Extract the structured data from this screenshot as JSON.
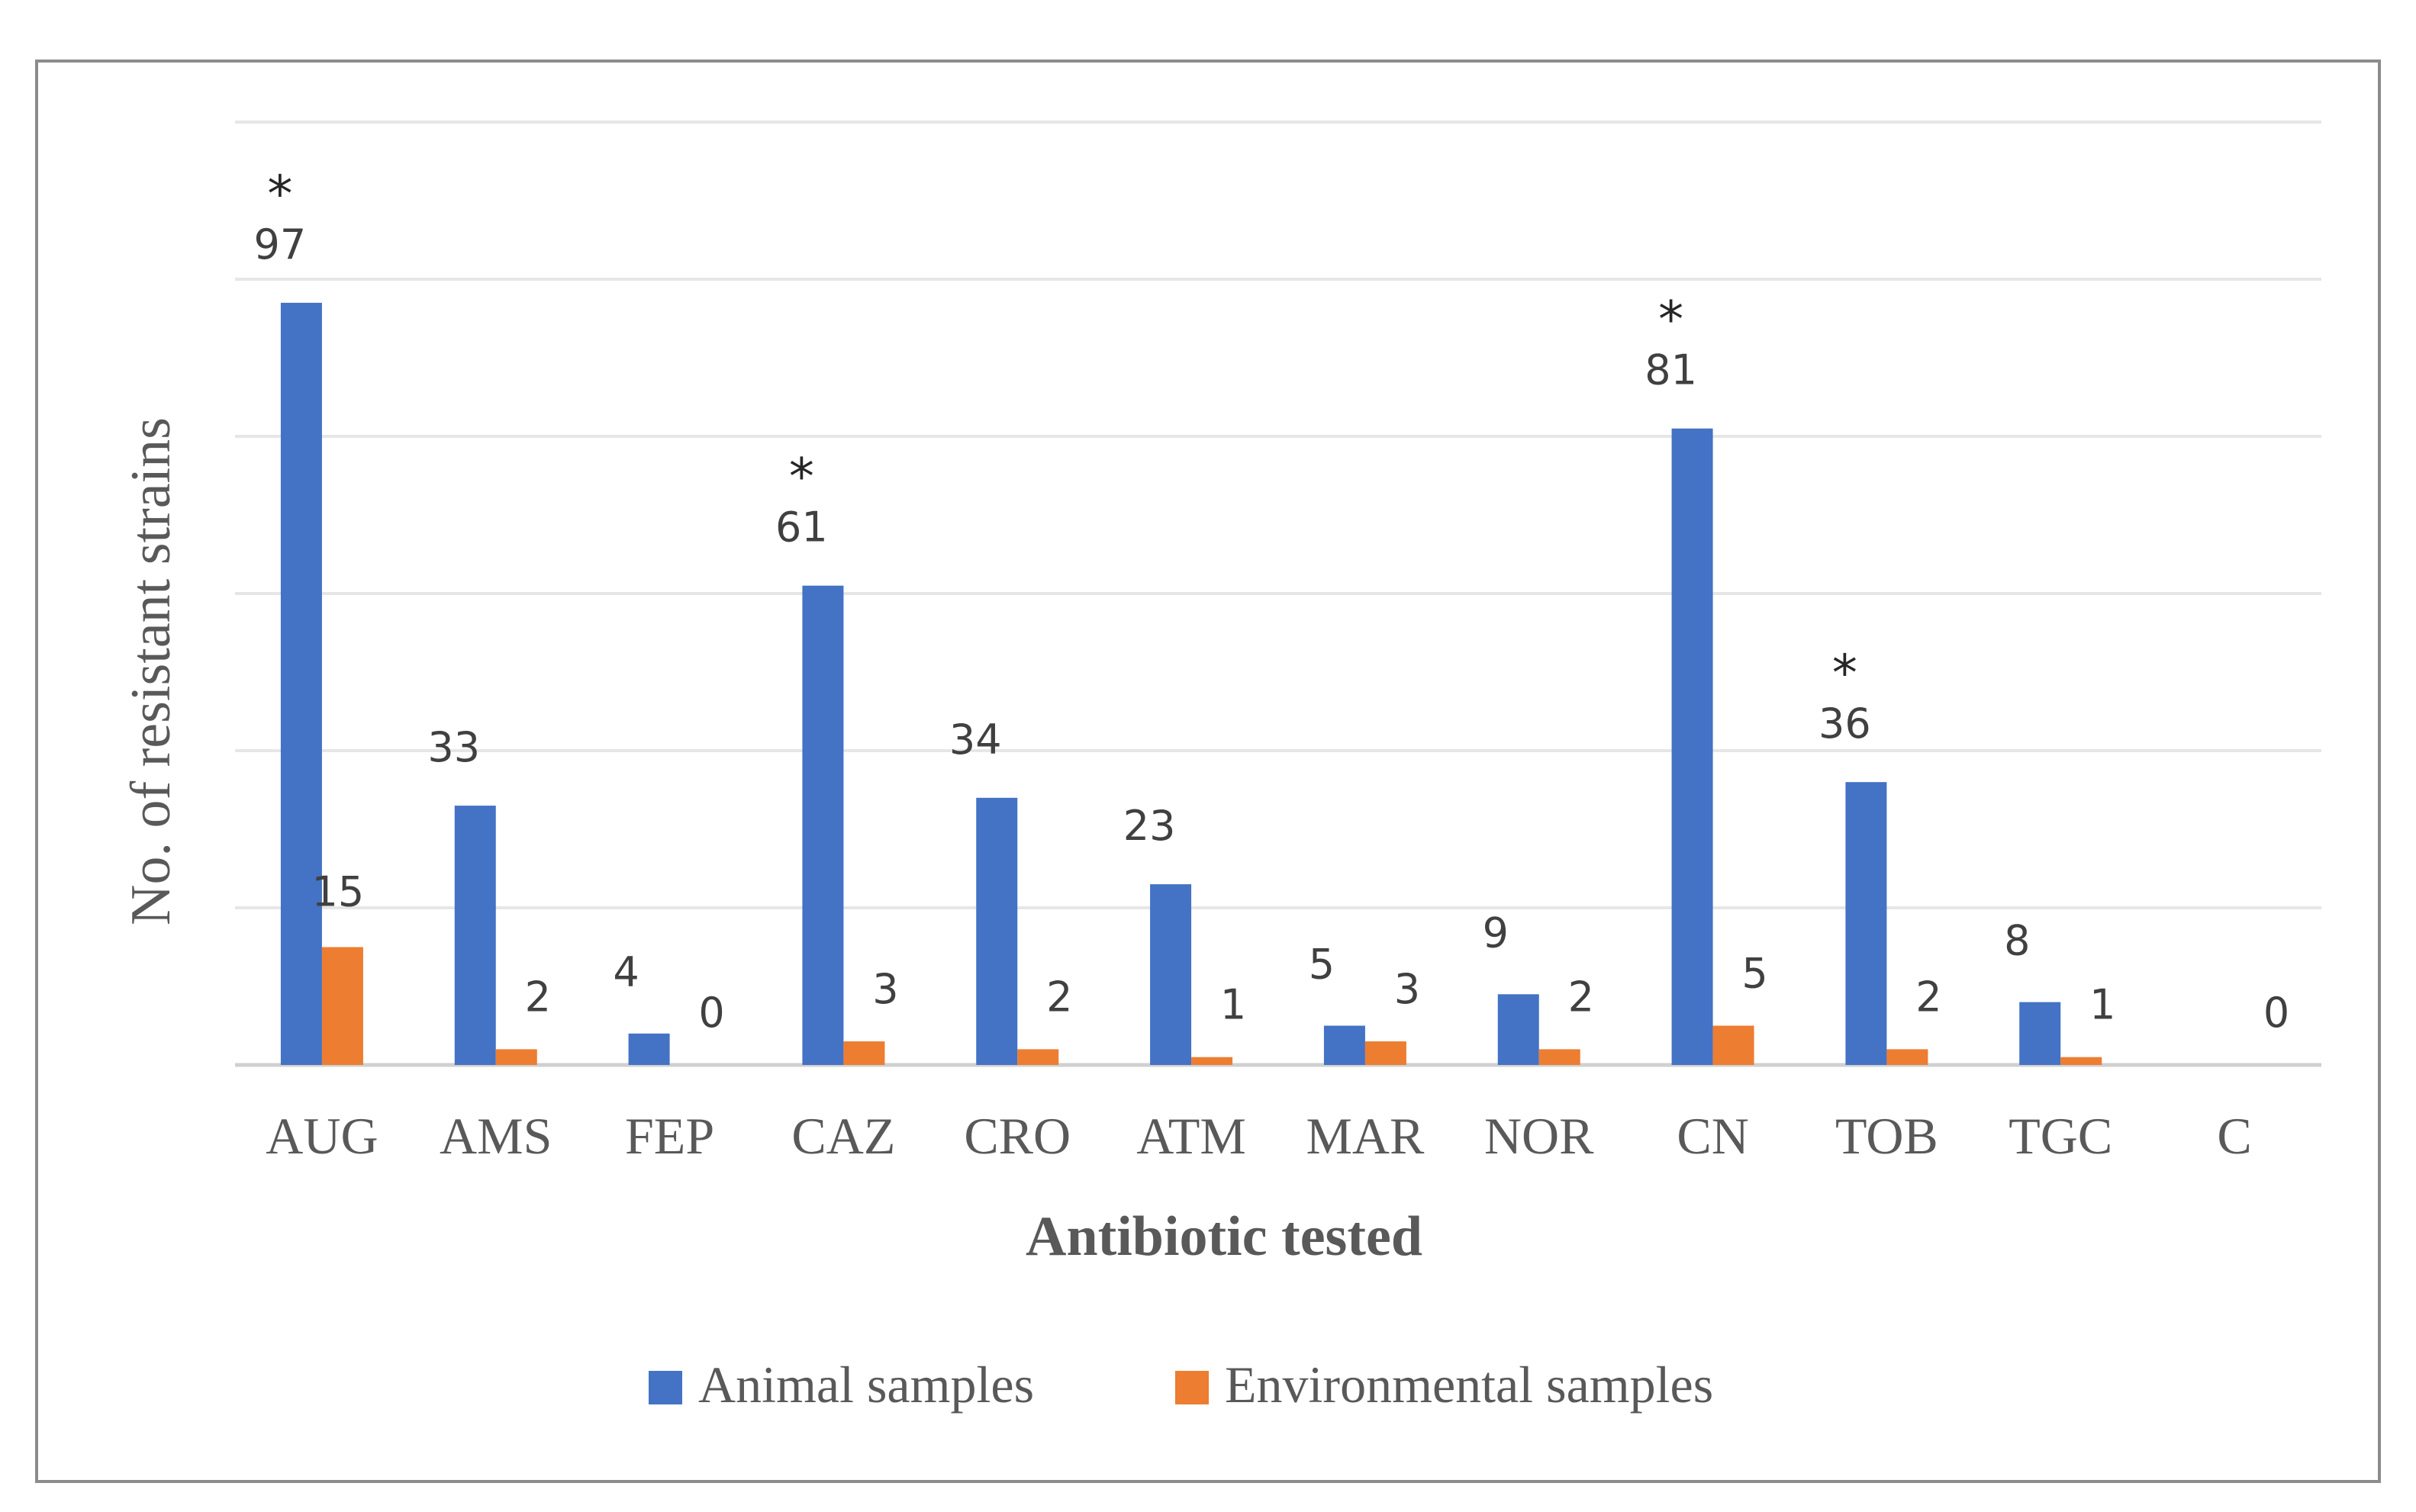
{
  "chart_data": {
    "type": "bar",
    "title": "",
    "xlabel": "Antibiotic tested",
    "ylabel": "No. of resistant strains",
    "ylim": [
      0,
      120
    ],
    "grid": true,
    "legend_position": "bottom",
    "categories": [
      "AUG",
      "AMS",
      "FEP",
      "CAZ",
      "CRO",
      "ATM",
      "MAR",
      "NOR",
      "CN",
      "TOB",
      "TGC",
      "C"
    ],
    "series": [
      {
        "name": "Animal samples",
        "color": "#4472c4",
        "values": [
          97,
          33,
          4,
          61,
          34,
          23,
          5,
          9,
          81,
          36,
          8,
          0
        ],
        "labels": [
          "97",
          "33",
          "4",
          "61",
          "34",
          "23",
          "5",
          "9",
          "81",
          "36",
          "8",
          ""
        ]
      },
      {
        "name": "Environmental samples",
        "color": "#ed7d31",
        "values": [
          15,
          2,
          0,
          3,
          2,
          1,
          3,
          2,
          5,
          2,
          1,
          0
        ],
        "labels": [
          "15",
          "2",
          "0",
          "3",
          "2",
          "1",
          "3",
          "2",
          "5",
          "2",
          "1",
          "0"
        ]
      }
    ],
    "significance_marker": "*",
    "significant_categories": [
      "AUG",
      "CAZ",
      "CN",
      "TOB"
    ]
  }
}
